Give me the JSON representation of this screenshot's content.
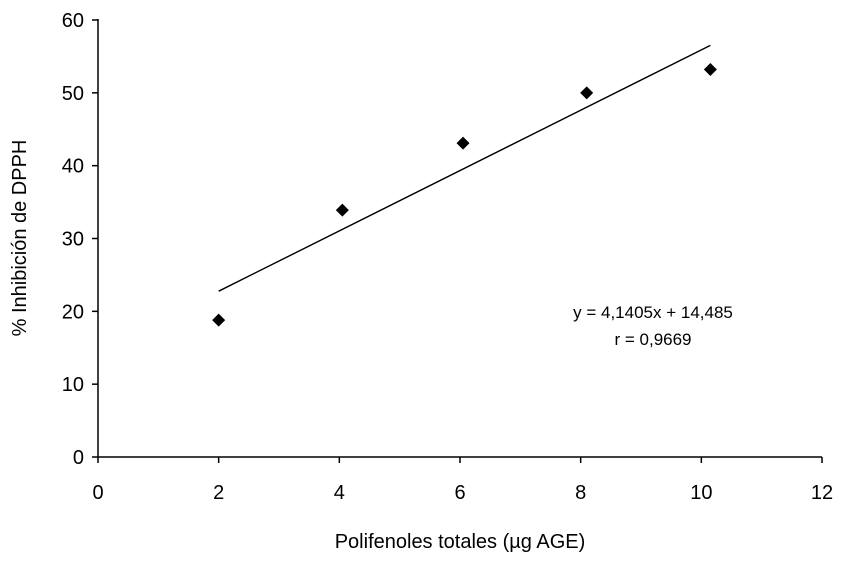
{
  "chart_data": {
    "type": "scatter",
    "title": "",
    "xlabel": "Polifenoles totales (µg AGE)",
    "ylabel": "% Inhibición de DPPH",
    "xlim": [
      0,
      12
    ],
    "ylim": [
      0,
      60
    ],
    "x_ticks": [
      "0",
      "2",
      "4",
      "6",
      "8",
      "10",
      "12"
    ],
    "y_ticks": [
      "0",
      "10",
      "20",
      "30",
      "40",
      "50",
      "60"
    ],
    "grid": false,
    "legend": "none",
    "marker": "diamond",
    "series": [
      {
        "x": [
          2.0,
          4.05,
          6.05,
          8.1,
          10.15
        ],
        "y": [
          18.8,
          33.9,
          43.1,
          50.0,
          53.2
        ]
      }
    ],
    "trendline": {
      "slope": 4.1405,
      "intercept": 14.485,
      "x_range": [
        2.0,
        10.15
      ]
    },
    "annotations": {
      "equation": "y = 4,1405x + 14,485",
      "r_value": "r = 0,9669"
    }
  }
}
